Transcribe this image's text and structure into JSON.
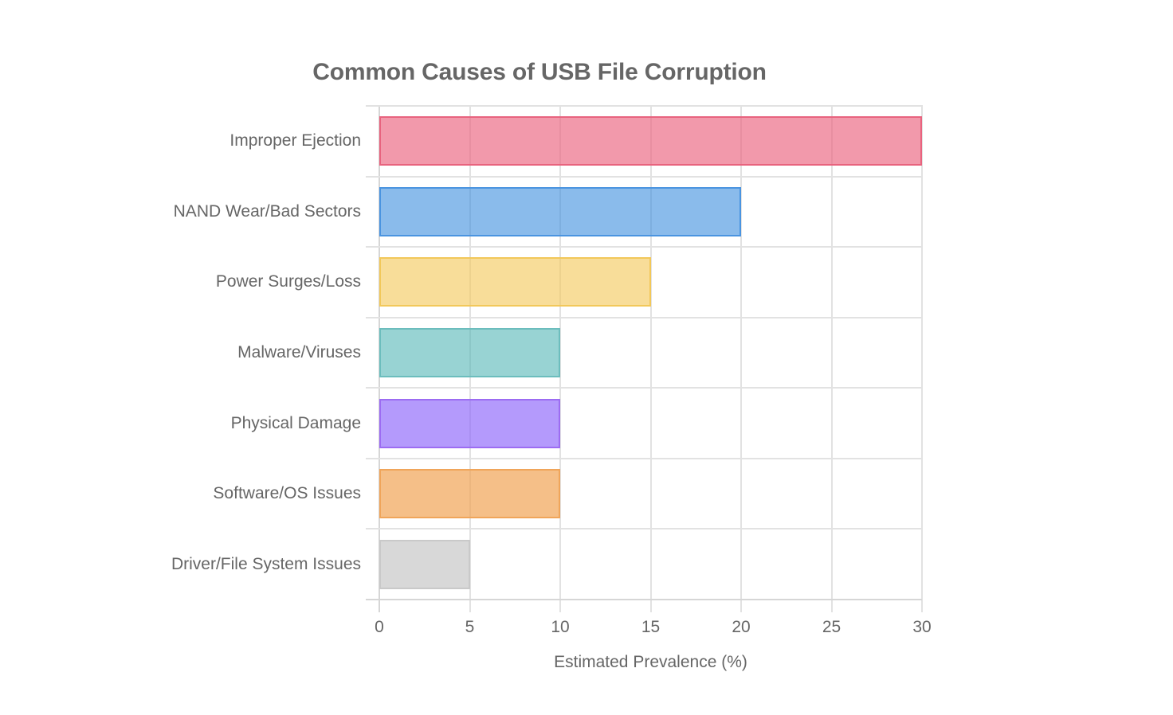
{
  "chart_data": {
    "type": "bar",
    "orientation": "horizontal",
    "title": "Common Causes of USB File Corruption",
    "xlabel": "Estimated Prevalence (%)",
    "ylabel": "",
    "categories": [
      "Improper Ejection",
      "NAND Wear/Bad Sectors",
      "Power Surges/Loss",
      "Malware/Viruses",
      "Physical Damage",
      "Software/OS Issues",
      "Driver/File System Issues"
    ],
    "values": [
      30,
      20,
      15,
      10,
      10,
      10,
      5
    ],
    "colors": [
      {
        "fill": "rgba(235, 99, 126, 0.65)",
        "border": "#e8637e"
      },
      {
        "fill": "rgba(60, 142, 222, 0.60)",
        "border": "#4a94e0"
      },
      {
        "fill": "rgba(244, 200, 90, 0.62)",
        "border": "#f2c85a"
      },
      {
        "fill": "rgba(78, 180, 180, 0.58)",
        "border": "#6cbdbd"
      },
      {
        "fill": "rgba(140, 100, 250, 0.65)",
        "border": "#9c6cf2"
      },
      {
        "fill": "rgba(240, 160, 80, 0.68)",
        "border": "#f0a55a"
      },
      {
        "fill": "rgba(200, 200, 200, 0.70)",
        "border": "#c9c9c9"
      }
    ],
    "xlim": [
      0,
      30
    ],
    "x_ticks": [
      "0",
      "5",
      "10",
      "15",
      "20",
      "25",
      "30"
    ],
    "grid": true,
    "legend": "none"
  }
}
